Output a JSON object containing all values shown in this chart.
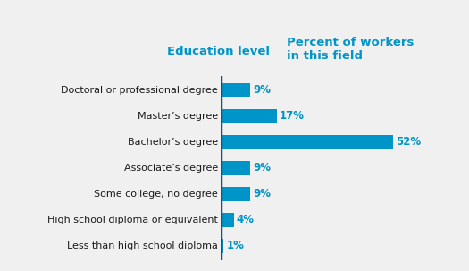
{
  "categories": [
    "Less than high school diploma",
    "High school diploma or equivalent",
    "Some college, no degree",
    "Associate’s degree",
    "Bachelor’s degree",
    "Master’s degree",
    "Doctoral or professional degree"
  ],
  "values": [
    1,
    4,
    9,
    9,
    52,
    17,
    9
  ],
  "bar_color": "#0095c8",
  "divider_color": "#1a5276",
  "label_color_left": "#1a1a1a",
  "label_color_right": "#0095c8",
  "header_color": "#0095c8",
  "background_color": "#f0f0f0",
  "header_left": "Education level",
  "header_right": "Percent of workers\nin this field",
  "xlim": [
    0,
    58
  ],
  "bar_height": 0.55,
  "figsize": [
    5.25,
    3.03
  ],
  "dpi": 100,
  "label_fontsize": 8.0,
  "pct_fontsize": 8.5,
  "header_fontsize": 9.5
}
